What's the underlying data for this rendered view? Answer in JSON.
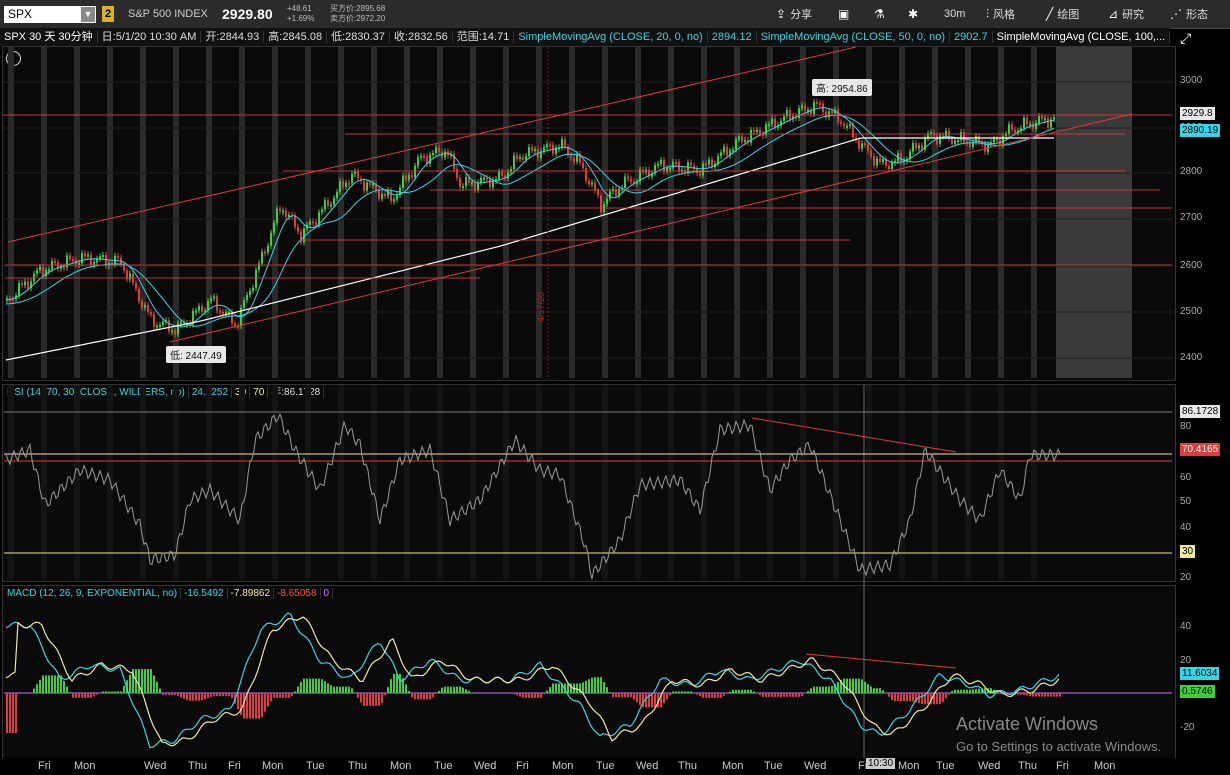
{
  "toolbar": {
    "symbol": "SPX",
    "badge": "2",
    "index_name": "S&P 500 INDEX",
    "last_price": "2929.80",
    "change": "+48.61",
    "change_pct": "+1.69%",
    "bid": "买方价:2895.68",
    "ask": "卖方价:2972.20",
    "buttons": {
      "share": "分享",
      "interval": "30m",
      "style": "风格",
      "draw": "绘图",
      "study": "研究",
      "pattern": "形态"
    }
  },
  "infobar": {
    "title": "SPX 30 天 30分钟",
    "date": "日:5/1/20 10:30 AM",
    "open": "开:2844.93",
    "high": "高:2845.08",
    "low": "低:2830.37",
    "close": "收:2832.56",
    "range": "范围:14.71",
    "sma20_label": "SimpleMovingAvg (CLOSE, 20, 0, no)",
    "sma20_value": "2894.12",
    "sma50_label": "SimpleMovingAvg (CLOSE, 50, 0, no)",
    "sma50_value": "2902.7",
    "sma100_label": "SimpleMovingAvg (CLOSE, 100,..."
  },
  "price_panel": {
    "y_labels": [
      "3000",
      "2900",
      "2800",
      "2700",
      "2600",
      "2500",
      "2400"
    ],
    "current_tag": "2929.8",
    "sma_tag": "2890.19",
    "high_callout": "高: 2954.86",
    "low_callout": "低: 2447.49",
    "vertical_date": "4/17/20"
  },
  "rsi_panel": {
    "header_label": "RSI (14, 70, 30, CLOSE, WILDERS, no)",
    "value": "24.0252",
    "oversold": "30",
    "overbought": "70",
    "year_value": "年:86.1728",
    "y_labels": [
      "80",
      "70",
      "60",
      "50",
      "40",
      "30",
      "20"
    ],
    "tag_top": "86.1728",
    "tag_current": "70.4165",
    "tag_30": "30"
  },
  "macd_panel": {
    "header_label": "MACD (12, 26, 9, EXPONENTIAL, no)",
    "value": "-16.5492",
    "avg": "-7.89862",
    "diff": "-8.65058",
    "zero": "0",
    "y_labels": [
      "40",
      "20",
      "0",
      "-20"
    ],
    "tag_value": "11.6034",
    "tag_diff": "0.5746"
  },
  "x_axis": {
    "labels": [
      "Fri",
      "Mon",
      "Wed",
      "Thu",
      "Fri",
      "Mon",
      "Tue",
      "Thu",
      "Mon",
      "Tue",
      "Wed",
      "Fri",
      "Mon",
      "Tue",
      "Wed",
      "Thu",
      "Mon",
      "Tue",
      "Wed",
      "Fri",
      "Mon",
      "Tue",
      "Wed",
      "Thu",
      "Fri",
      "Mon"
    ],
    "cursor_label": "10:30"
  },
  "watermark": {
    "line1": "Activate Windows",
    "line2": "Go to Settings to activate Windows."
  },
  "colors": {
    "up": "#3ad13a",
    "down": "#e33b3b",
    "sma_cyan": "#33d6e6",
    "sma_white": "#ffffff",
    "rsi_line": "#9a9a9a",
    "trend": "#e23a3a"
  }
}
